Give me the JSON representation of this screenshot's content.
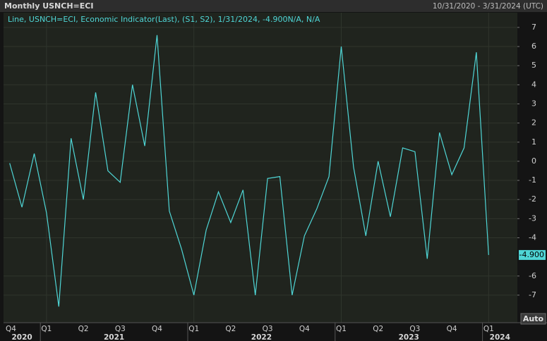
{
  "header": {
    "title": "Monthly USNCH=ECI",
    "range": "10/31/2020 - 3/31/2024 (UTC)"
  },
  "chart_data": {
    "type": "line",
    "legend": "Line, USNCH=ECI, Economic Indicator(Last), (S1, S2), 1/31/2024, -4.900N/A, N/A",
    "categories": [
      "Q4",
      null,
      null,
      "Q1",
      null,
      null,
      "Q2",
      null,
      null,
      "Q3",
      null,
      null,
      "Q4",
      null,
      null,
      "Q1",
      null,
      null,
      "Q2",
      null,
      null,
      "Q3",
      null,
      null,
      "Q4",
      null,
      null,
      "Q1",
      null,
      null,
      "Q2",
      null,
      null,
      "Q3",
      null,
      null,
      "Q4",
      null,
      null,
      "Q1",
      null,
      null
    ],
    "year_labels": [
      "2020",
      "2021",
      "2022",
      "2023",
      "2024"
    ],
    "series": [
      {
        "name": "USNCH=ECI",
        "color": "#4fd6d6",
        "values": [
          -0.1,
          -2.4,
          0.4,
          -2.7,
          -7.6,
          1.2,
          -2.0,
          3.6,
          -0.5,
          -1.1,
          4.0,
          0.8,
          6.6,
          -2.6,
          -4.6,
          -7.0,
          -3.6,
          -1.6,
          -3.2,
          -1.5,
          -7.0,
          -0.9,
          -0.8,
          -7.0,
          -3.9,
          -2.5,
          -0.8,
          6.0,
          -0.3,
          -3.9,
          0.0,
          -2.9,
          0.7,
          0.5,
          -5.1,
          1.5,
          -0.7,
          0.7,
          5.7,
          -4.9,
          null,
          null
        ],
        "value_labels": [
          null,
          null,
          null,
          null,
          null,
          null,
          null,
          null,
          null,
          null,
          null,
          null,
          null,
          null,
          null,
          null,
          null,
          null,
          null,
          null,
          null,
          null,
          null,
          null,
          null,
          null,
          null,
          null,
          null,
          null,
          null,
          null,
          null,
          null,
          null,
          null,
          null,
          null,
          null,
          "-4.900",
          null,
          null
        ]
      }
    ],
    "ylim": [
      -8.44,
      7.77
    ],
    "yticks": [
      -7,
      -6,
      -4,
      -3,
      -2,
      -1,
      0,
      1,
      2,
      3,
      4,
      5,
      6,
      7
    ],
    "grid": true
  },
  "controls": {
    "auto": "Auto"
  }
}
